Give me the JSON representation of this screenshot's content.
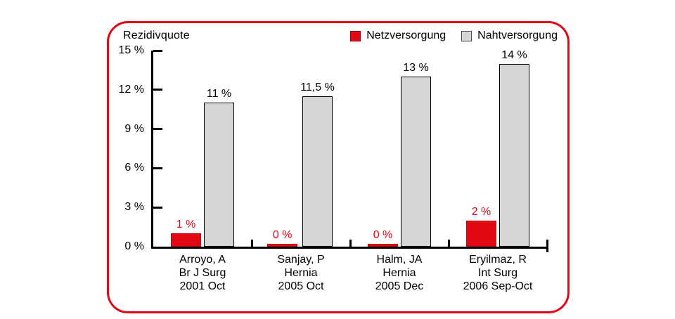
{
  "chart": {
    "title": "Rezidivquote",
    "legend": [
      {
        "label": "Netzversorgung",
        "color": "#e30613"
      },
      {
        "label": "Nahtversorgung",
        "color": "#d6d6d6"
      }
    ]
  },
  "chart_data": {
    "type": "bar",
    "title": "Rezidivquote",
    "categories": [
      [
        "Arroyo, A",
        "Br J Surg",
        "2001 Oct"
      ],
      [
        "Sanjay, P",
        "Hernia",
        "2005 Oct"
      ],
      [
        "Halm, JA",
        "Hernia",
        "2005 Dec"
      ],
      [
        "Eryilmaz, R",
        "Int Surg",
        "2006 Sep-Oct"
      ]
    ],
    "series": [
      {
        "name": "Netzversorgung",
        "color": "#e30613",
        "values": [
          1,
          0,
          0,
          2
        ],
        "labels": [
          "1 %",
          "0 %",
          "0 %",
          "2 %"
        ]
      },
      {
        "name": "Nahtversorgung",
        "color": "#d6d6d6",
        "values": [
          11,
          11.5,
          13,
          14
        ],
        "labels": [
          "11 %",
          "11,5 %",
          "13 %",
          "14 %"
        ]
      }
    ],
    "ylabel": "Rezidivquote",
    "xlabel": "",
    "ylim": [
      0,
      15
    ],
    "yticks": [
      {
        "value": 15,
        "label": "15 %"
      },
      {
        "value": 12,
        "label": "12 %"
      },
      {
        "value": 9,
        "label": "9 %"
      },
      {
        "value": 6,
        "label": "6 %"
      },
      {
        "value": 3,
        "label": "3 %"
      },
      {
        "value": 0,
        "label": "0 %"
      }
    ],
    "grid": false,
    "legend_position": "top-right"
  }
}
